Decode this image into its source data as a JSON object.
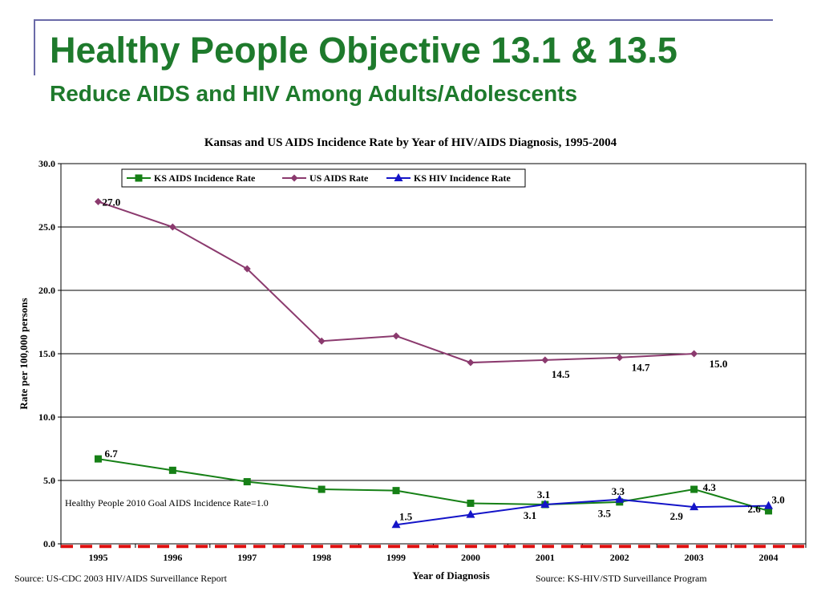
{
  "slide": {
    "title": "Healthy People Objective 13.1 & 13.5",
    "subtitle": "Reduce AIDS and HIV Among Adults/Adolescents",
    "source_left": "Source: US-CDC 2003 HIV/AIDS Surveillance Report",
    "source_right": "Source: KS-HIV/STD Surveillance Program",
    "colors": {
      "title": "#1e7a2c",
      "rule": "#6a6aa8"
    }
  },
  "chart_data": {
    "type": "line",
    "title": "Kansas and US AIDS Incidence Rate by Year of HIV/AIDS Diagnosis, 1995-2004",
    "xlabel": "Year of Diagnosis",
    "ylabel": "Rate per 100,000 persons",
    "categories": [
      "1995",
      "1996",
      "1997",
      "1998",
      "1999",
      "2000",
      "2001",
      "2002",
      "2003",
      "2004"
    ],
    "ylim": [
      0,
      30
    ],
    "yticks": [
      "0.0",
      "5.0",
      "10.0",
      "15.0",
      "20.0",
      "25.0",
      "30.0"
    ],
    "grid": true,
    "legend_position": "top-left",
    "series": [
      {
        "name": "KS AIDS Incidence Rate",
        "color": "#168016",
        "marker": "square",
        "values": [
          6.7,
          5.8,
          4.9,
          4.3,
          4.2,
          3.2,
          3.1,
          3.3,
          4.3,
          2.6
        ]
      },
      {
        "name": "US AIDS Rate",
        "color": "#8b3a6e",
        "marker": "diamond",
        "values": [
          27.0,
          25.0,
          21.7,
          16.0,
          16.4,
          14.3,
          14.5,
          14.7,
          15.0,
          null
        ]
      },
      {
        "name": "KS HIV Incidence Rate",
        "color": "#1414c8",
        "marker": "triangle",
        "values": [
          null,
          null,
          null,
          null,
          1.5,
          2.3,
          3.1,
          3.5,
          2.9,
          3.0
        ]
      }
    ],
    "data_labels": [
      {
        "category": "1995",
        "text": "27.0"
      },
      {
        "category": "2001",
        "text": "14.5"
      },
      {
        "category": "2002",
        "text": "14.7"
      },
      {
        "category": "2003",
        "text": "15.0"
      },
      {
        "category": "1995",
        "text": "6.7"
      },
      {
        "category": "2001",
        "text": "3.1"
      },
      {
        "category": "2002",
        "text": "3.3"
      },
      {
        "category": "2003",
        "text": "4.3"
      },
      {
        "category": "2004",
        "text": "2.6"
      },
      {
        "category": "1999",
        "text": "1.5"
      },
      {
        "category": "2001",
        "text": "3.1"
      },
      {
        "category": "2002",
        "text": "3.5"
      },
      {
        "category": "2003",
        "text": "2.9"
      },
      {
        "category": "2004",
        "text": "3.0"
      }
    ],
    "goal": {
      "value": 1.0,
      "label": "Healthy People 2010 Goal AIDS Incidence Rate=1.0",
      "color": "#e01010"
    }
  }
}
